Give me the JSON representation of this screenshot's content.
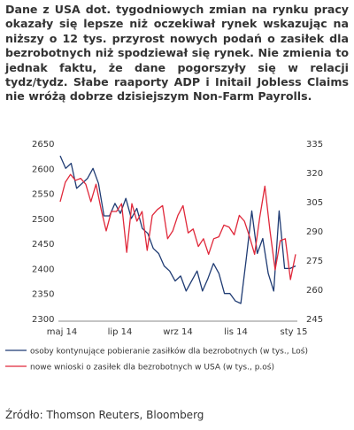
{
  "paragraph": "Dane z USA dot. tygodniowych zmian na rynku pracy okazały się lepsze niż oczekiwał rynek wskazując na niższy o 12 tys. przyrost nowych podań o zasiłek dla bezrobotnych niż spodziewał się rynek. Nie zmienia to jednak faktu, że dane pogorszyły się w relacji tydz/tydz. Słabe raaporty ADP i Initail Jobless Claims nie wróżą dobrze dzisiejszym Non-Farm Payrolls.",
  "source": "Źródło: Thomson Reuters, Bloomberg",
  "chart_data": {
    "type": "line",
    "x_ticks": [
      "maj 14",
      "lip 14",
      "wrz 14",
      "lis 14",
      "sty 15"
    ],
    "y_left": {
      "ticks": [
        2300,
        2350,
        2400,
        2450,
        2500,
        2550,
        2600,
        2650
      ],
      "range": [
        2300,
        2650
      ]
    },
    "y_right": {
      "ticks": [
        245,
        260,
        275,
        290,
        305,
        320,
        335
      ],
      "range": [
        245,
        335
      ]
    },
    "grid": false,
    "legend_position": "bottom",
    "series": [
      {
        "name": "osoby kontynujące pobieranie zasiłków dla bezrobotnych (w tys., Loś)",
        "axis": "left",
        "color": "#1f3b73",
        "values": [
          2625,
          2600,
          2610,
          2560,
          2570,
          2580,
          2600,
          2570,
          2505,
          2505,
          2530,
          2510,
          2540,
          2500,
          2520,
          2480,
          2470,
          2440,
          2430,
          2405,
          2395,
          2375,
          2385,
          2355,
          2375,
          2395,
          2355,
          2380,
          2410,
          2390,
          2350,
          2350,
          2335,
          2330,
          2420,
          2515,
          2430,
          2460,
          2390,
          2355,
          2515,
          2400,
          2400,
          2405
        ]
      },
      {
        "name": "nowe wnioski o zasiłek dla bezrobotnych w USA (w tys., p.oś)",
        "axis": "right",
        "color": "#e0283a",
        "values": [
          305,
          315,
          319,
          316,
          317,
          314,
          305,
          314,
          301,
          290,
          300,
          300,
          304,
          279,
          304,
          295,
          300,
          280,
          298,
          301,
          303,
          286,
          290,
          298,
          303,
          289,
          291,
          282,
          286,
          278,
          286,
          287,
          293,
          292,
          288,
          298,
          295,
          287,
          278,
          297,
          313,
          290,
          270,
          285,
          286,
          265,
          278
        ]
      }
    ]
  }
}
